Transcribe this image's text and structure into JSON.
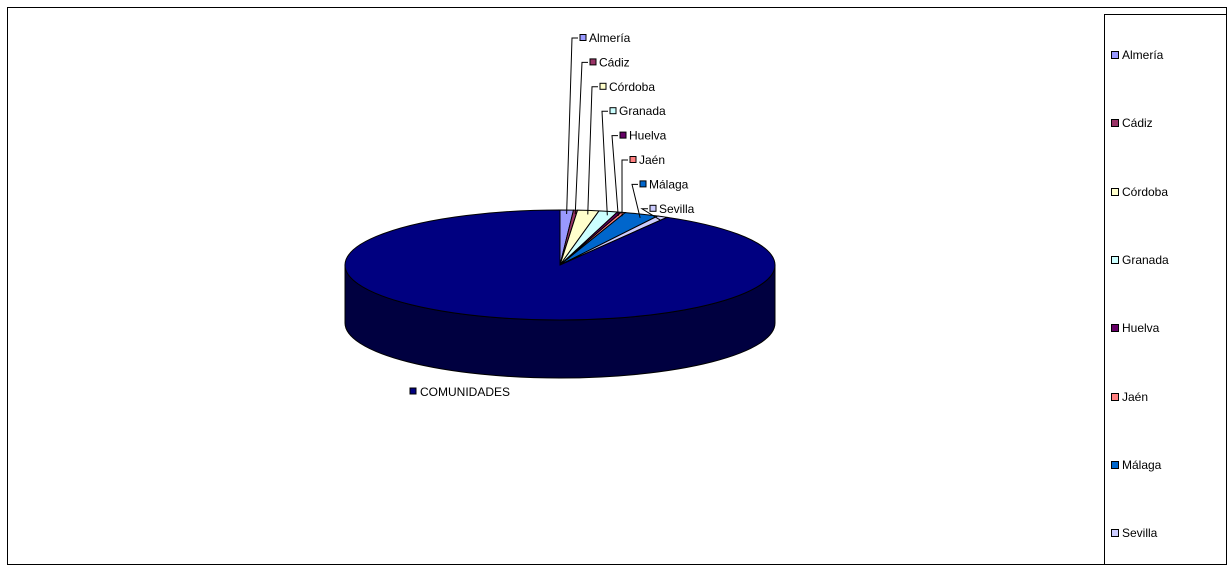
{
  "chart_data": {
    "type": "pie",
    "three_d": true,
    "legend_position": "right",
    "categories": [
      "Almería",
      "Cádiz",
      "Córdoba",
      "Granada",
      "Huelva",
      "Jaén",
      "Málaga",
      "Sevilla",
      "COMUNIDADES"
    ],
    "values": [
      1.0,
      0.3,
      1.6,
      1.4,
      0.3,
      0.3,
      2.6,
      0.8,
      91.7
    ],
    "colors": [
      "#9999ff",
      "#993366",
      "#ffffcc",
      "#ccffff",
      "#660066",
      "#ff8080",
      "#0066cc",
      "#ccccff",
      "#000080"
    ],
    "legend": [
      "Almería",
      "Cádiz",
      "Córdoba",
      "Granada",
      "Huelva",
      "Jaén",
      "Málaga",
      "Sevilla"
    ]
  }
}
